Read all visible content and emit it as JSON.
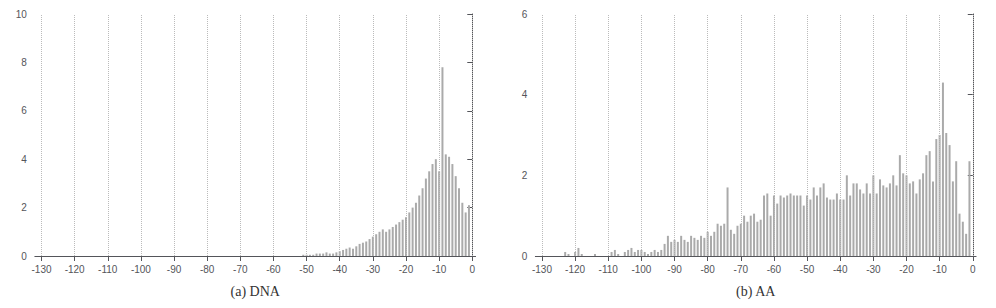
{
  "chart_data": [
    {
      "type": "bar",
      "xlabel": "(a) DNA",
      "color": "#aaaaaa",
      "grid": "x",
      "xlim": [
        -132,
        1
      ],
      "xticks": [
        -130,
        -120,
        -110,
        -100,
        -90,
        -80,
        -70,
        -60,
        -50,
        -40,
        -30,
        -20,
        -10,
        0
      ],
      "ylim": [
        0,
        10
      ],
      "yticks": [
        0,
        2,
        4,
        6,
        8,
        10
      ],
      "x": [
        -130,
        -129,
        -128,
        -127,
        -126,
        -125,
        -124,
        -123,
        -122,
        -121,
        -120,
        -119,
        -118,
        -117,
        -116,
        -115,
        -114,
        -113,
        -112,
        -111,
        -110,
        -109,
        -108,
        -107,
        -106,
        -105,
        -104,
        -103,
        -102,
        -101,
        -100,
        -99,
        -98,
        -97,
        -96,
        -95,
        -94,
        -93,
        -92,
        -91,
        -90,
        -89,
        -88,
        -87,
        -86,
        -85,
        -84,
        -83,
        -82,
        -81,
        -80,
        -79,
        -78,
        -77,
        -76,
        -75,
        -74,
        -73,
        -72,
        -71,
        -70,
        -69,
        -68,
        -67,
        -66,
        -65,
        -64,
        -63,
        -62,
        -61,
        -60,
        -59,
        -58,
        -57,
        -56,
        -55,
        -54,
        -53,
        -52,
        -51,
        -50,
        -49,
        -48,
        -47,
        -46,
        -45,
        -44,
        -43,
        -42,
        -41,
        -40,
        -39,
        -38,
        -37,
        -36,
        -35,
        -34,
        -33,
        -32,
        -31,
        -30,
        -29,
        -28,
        -27,
        -26,
        -25,
        -24,
        -23,
        -22,
        -21,
        -20,
        -19,
        -18,
        -17,
        -16,
        -15,
        -14,
        -13,
        -12,
        -11,
        -10,
        -9,
        -8,
        -7,
        -6,
        -5,
        -4,
        -3,
        -2,
        -1,
        0
      ],
      "values": [
        0.0,
        0.0,
        0.0,
        0.0,
        0.0,
        0.0,
        0.0,
        0.0,
        0.0,
        0.0,
        0.0,
        0.0,
        0.0,
        0.0,
        0.0,
        0.0,
        0.0,
        0.0,
        0.0,
        0.0,
        0.0,
        0.0,
        0.0,
        0.0,
        0.0,
        0.0,
        0.0,
        0.0,
        0.0,
        0.0,
        0.0,
        0.0,
        0.0,
        0.0,
        0.0,
        0.0,
        0.0,
        0.0,
        0.0,
        0.0,
        0.0,
        0.0,
        0.0,
        0.0,
        0.0,
        0.0,
        0.0,
        0.0,
        0.0,
        0.0,
        0.0,
        0.0,
        0.0,
        0.0,
        0.0,
        0.0,
        0.0,
        0.0,
        0.0,
        0.0,
        0.0,
        0.0,
        0.0,
        0.0,
        0.0,
        0.0,
        0.0,
        0.0,
        0.0,
        0.0,
        0.0,
        0.0,
        0.0,
        0.0,
        0.0,
        0.0,
        0.0,
        0.0,
        0.0,
        0.05,
        0.05,
        0.05,
        0.05,
        0.1,
        0.1,
        0.1,
        0.15,
        0.1,
        0.1,
        0.15,
        0.2,
        0.25,
        0.3,
        0.35,
        0.3,
        0.4,
        0.5,
        0.55,
        0.6,
        0.7,
        0.8,
        0.9,
        1.0,
        1.1,
        1.0,
        1.1,
        1.2,
        1.3,
        1.4,
        1.5,
        1.6,
        1.8,
        2.0,
        2.2,
        2.5,
        2.8,
        3.2,
        3.5,
        3.8,
        4.0,
        3.5,
        7.8,
        4.2,
        4.1,
        3.8,
        3.3,
        2.8,
        2.2,
        1.8,
        2.1,
        0.0
      ]
    },
    {
      "type": "bar",
      "xlabel": "(b) AA",
      "color": "#aaaaaa",
      "grid": "x",
      "xlim": [
        -132,
        1
      ],
      "xticks": [
        -130,
        -120,
        -110,
        -100,
        -90,
        -80,
        -70,
        -60,
        -50,
        -40,
        -30,
        -20,
        -10,
        0
      ],
      "ylim": [
        0,
        6
      ],
      "yticks": [
        0,
        2,
        4,
        6
      ],
      "x": [
        -130,
        -129,
        -128,
        -127,
        -126,
        -125,
        -124,
        -123,
        -122,
        -121,
        -120,
        -119,
        -118,
        -117,
        -116,
        -115,
        -114,
        -113,
        -112,
        -111,
        -110,
        -109,
        -108,
        -107,
        -106,
        -105,
        -104,
        -103,
        -102,
        -101,
        -100,
        -99,
        -98,
        -97,
        -96,
        -95,
        -94,
        -93,
        -92,
        -91,
        -90,
        -89,
        -88,
        -87,
        -86,
        -85,
        -84,
        -83,
        -82,
        -81,
        -80,
        -79,
        -78,
        -77,
        -76,
        -75,
        -74,
        -73,
        -72,
        -71,
        -70,
        -69,
        -68,
        -67,
        -66,
        -65,
        -64,
        -63,
        -62,
        -61,
        -60,
        -59,
        -58,
        -57,
        -56,
        -55,
        -54,
        -53,
        -52,
        -51,
        -50,
        -49,
        -48,
        -47,
        -46,
        -45,
        -44,
        -43,
        -42,
        -41,
        -40,
        -39,
        -38,
        -37,
        -36,
        -35,
        -34,
        -33,
        -32,
        -31,
        -30,
        -29,
        -28,
        -27,
        -26,
        -25,
        -24,
        -23,
        -22,
        -21,
        -20,
        -19,
        -18,
        -17,
        -16,
        -15,
        -14,
        -13,
        -12,
        -11,
        -10,
        -9,
        -8,
        -7,
        -6,
        -5,
        -4,
        -3,
        -2,
        -1,
        0
      ],
      "values": [
        0.0,
        0.0,
        0.0,
        0.0,
        0.0,
        0.0,
        0.0,
        0.1,
        0.05,
        0.0,
        0.1,
        0.2,
        0.05,
        0.0,
        0.0,
        0.0,
        0.05,
        0.0,
        0.0,
        0.0,
        0.0,
        0.1,
        0.15,
        0.05,
        0.0,
        0.1,
        0.15,
        0.2,
        0.1,
        0.15,
        0.15,
        0.1,
        0.05,
        0.1,
        0.15,
        0.1,
        0.15,
        0.3,
        0.5,
        0.35,
        0.4,
        0.35,
        0.5,
        0.4,
        0.35,
        0.5,
        0.45,
        0.4,
        0.5,
        0.45,
        0.6,
        0.5,
        0.6,
        0.8,
        0.75,
        0.8,
        1.7,
        0.65,
        0.55,
        0.75,
        0.8,
        1.0,
        0.85,
        1.0,
        1.05,
        0.85,
        0.9,
        1.5,
        1.55,
        1.0,
        1.5,
        1.3,
        1.5,
        1.45,
        1.5,
        1.55,
        1.5,
        1.5,
        1.5,
        1.25,
        1.5,
        1.4,
        1.7,
        1.5,
        1.7,
        1.8,
        1.45,
        1.4,
        1.4,
        1.55,
        1.4,
        1.4,
        2.0,
        1.5,
        1.8,
        1.8,
        1.65,
        1.55,
        1.8,
        1.55,
        2.0,
        1.55,
        1.9,
        1.75,
        1.7,
        1.8,
        2.0,
        1.75,
        2.5,
        2.05,
        2.0,
        1.8,
        1.85,
        1.55,
        1.9,
        2.05,
        2.5,
        2.6,
        1.85,
        2.9,
        3.0,
        4.3,
        3.05,
        2.75,
        1.85,
        2.35,
        1.05,
        0.85,
        0.55,
        2.35,
        0.0
      ]
    }
  ]
}
